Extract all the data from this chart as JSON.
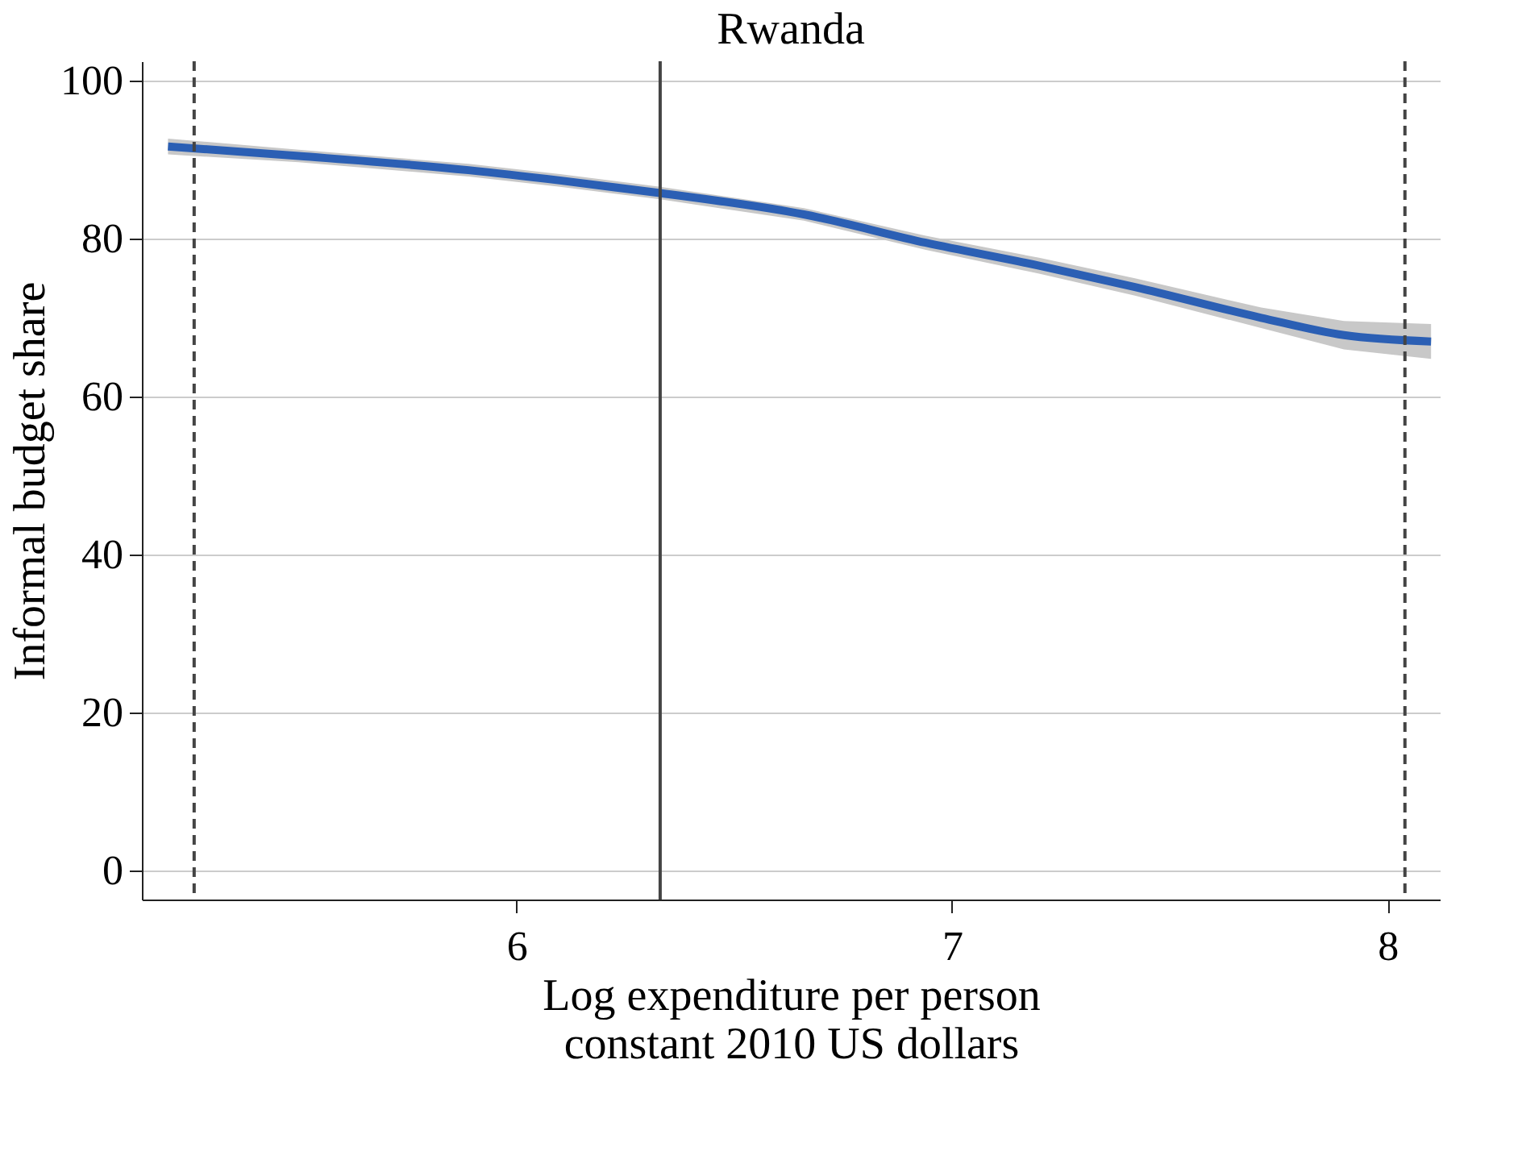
{
  "chart_data": {
    "type": "line",
    "title": "Rwanda",
    "xlabel": "Log expenditure per person\nconstant 2010 US dollars",
    "ylabel": "Informal budget share",
    "x": [
      5.2,
      5.5,
      5.89,
      6.1,
      6.33,
      6.66,
      6.94,
      7.2,
      7.42,
      7.71,
      7.9,
      8.1
    ],
    "series": [
      {
        "color": "#2b5fb4",
        "values": [
          91.7,
          90.5,
          88.7,
          87.4,
          85.8,
          83.1,
          79.5,
          76.6,
          73.9,
          70.0,
          67.8,
          67.0
        ],
        "lower": [
          90.7,
          89.7,
          87.9,
          86.6,
          85.0,
          82.3,
          78.6,
          75.6,
          72.8,
          68.7,
          66.0,
          64.8
        ],
        "upper": [
          92.7,
          91.3,
          89.5,
          88.2,
          86.6,
          83.9,
          80.4,
          77.6,
          75.0,
          71.3,
          69.6,
          69.2
        ]
      }
    ],
    "xlim": [
      5.14,
      8.12
    ],
    "xticks": [
      6,
      7,
      8
    ],
    "ylim": [
      -3.7,
      102.5
    ],
    "yticks": [
      0,
      20,
      40,
      60,
      80,
      100
    ],
    "grid": "y",
    "ref_lines": [
      {
        "axis": "x",
        "value": 5.26,
        "color": "#444444",
        "line_style": "dashed"
      },
      {
        "axis": "x",
        "value": 6.33,
        "color": "#444444",
        "line_style": "solid"
      },
      {
        "axis": "x",
        "value": 8.04,
        "color": "#444444",
        "line_style": "dashed"
      }
    ]
  }
}
